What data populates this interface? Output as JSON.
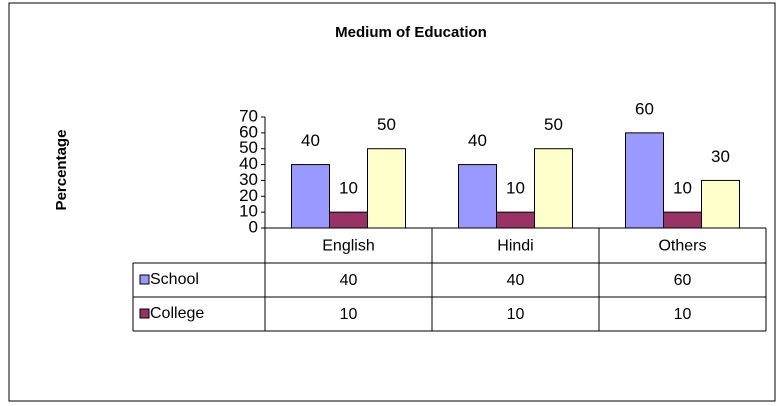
{
  "chart_data": {
    "type": "bar",
    "title": "Medium of Education",
    "ylabel": "Percentage",
    "categories": [
      "English",
      "Hindi",
      "Others"
    ],
    "series": [
      {
        "name": "School",
        "color": "#9999ff",
        "values": [
          40,
          40,
          60
        ]
      },
      {
        "name": "College",
        "color": "#993366",
        "values": [
          10,
          10,
          10
        ]
      },
      {
        "color": "#ffffcc",
        "values": [
          50,
          50,
          30
        ]
      }
    ],
    "ylim": [
      0,
      70
    ],
    "yticks": [
      0,
      10,
      20,
      30,
      40,
      50,
      60,
      70
    ],
    "grid": false,
    "data_table": true
  }
}
